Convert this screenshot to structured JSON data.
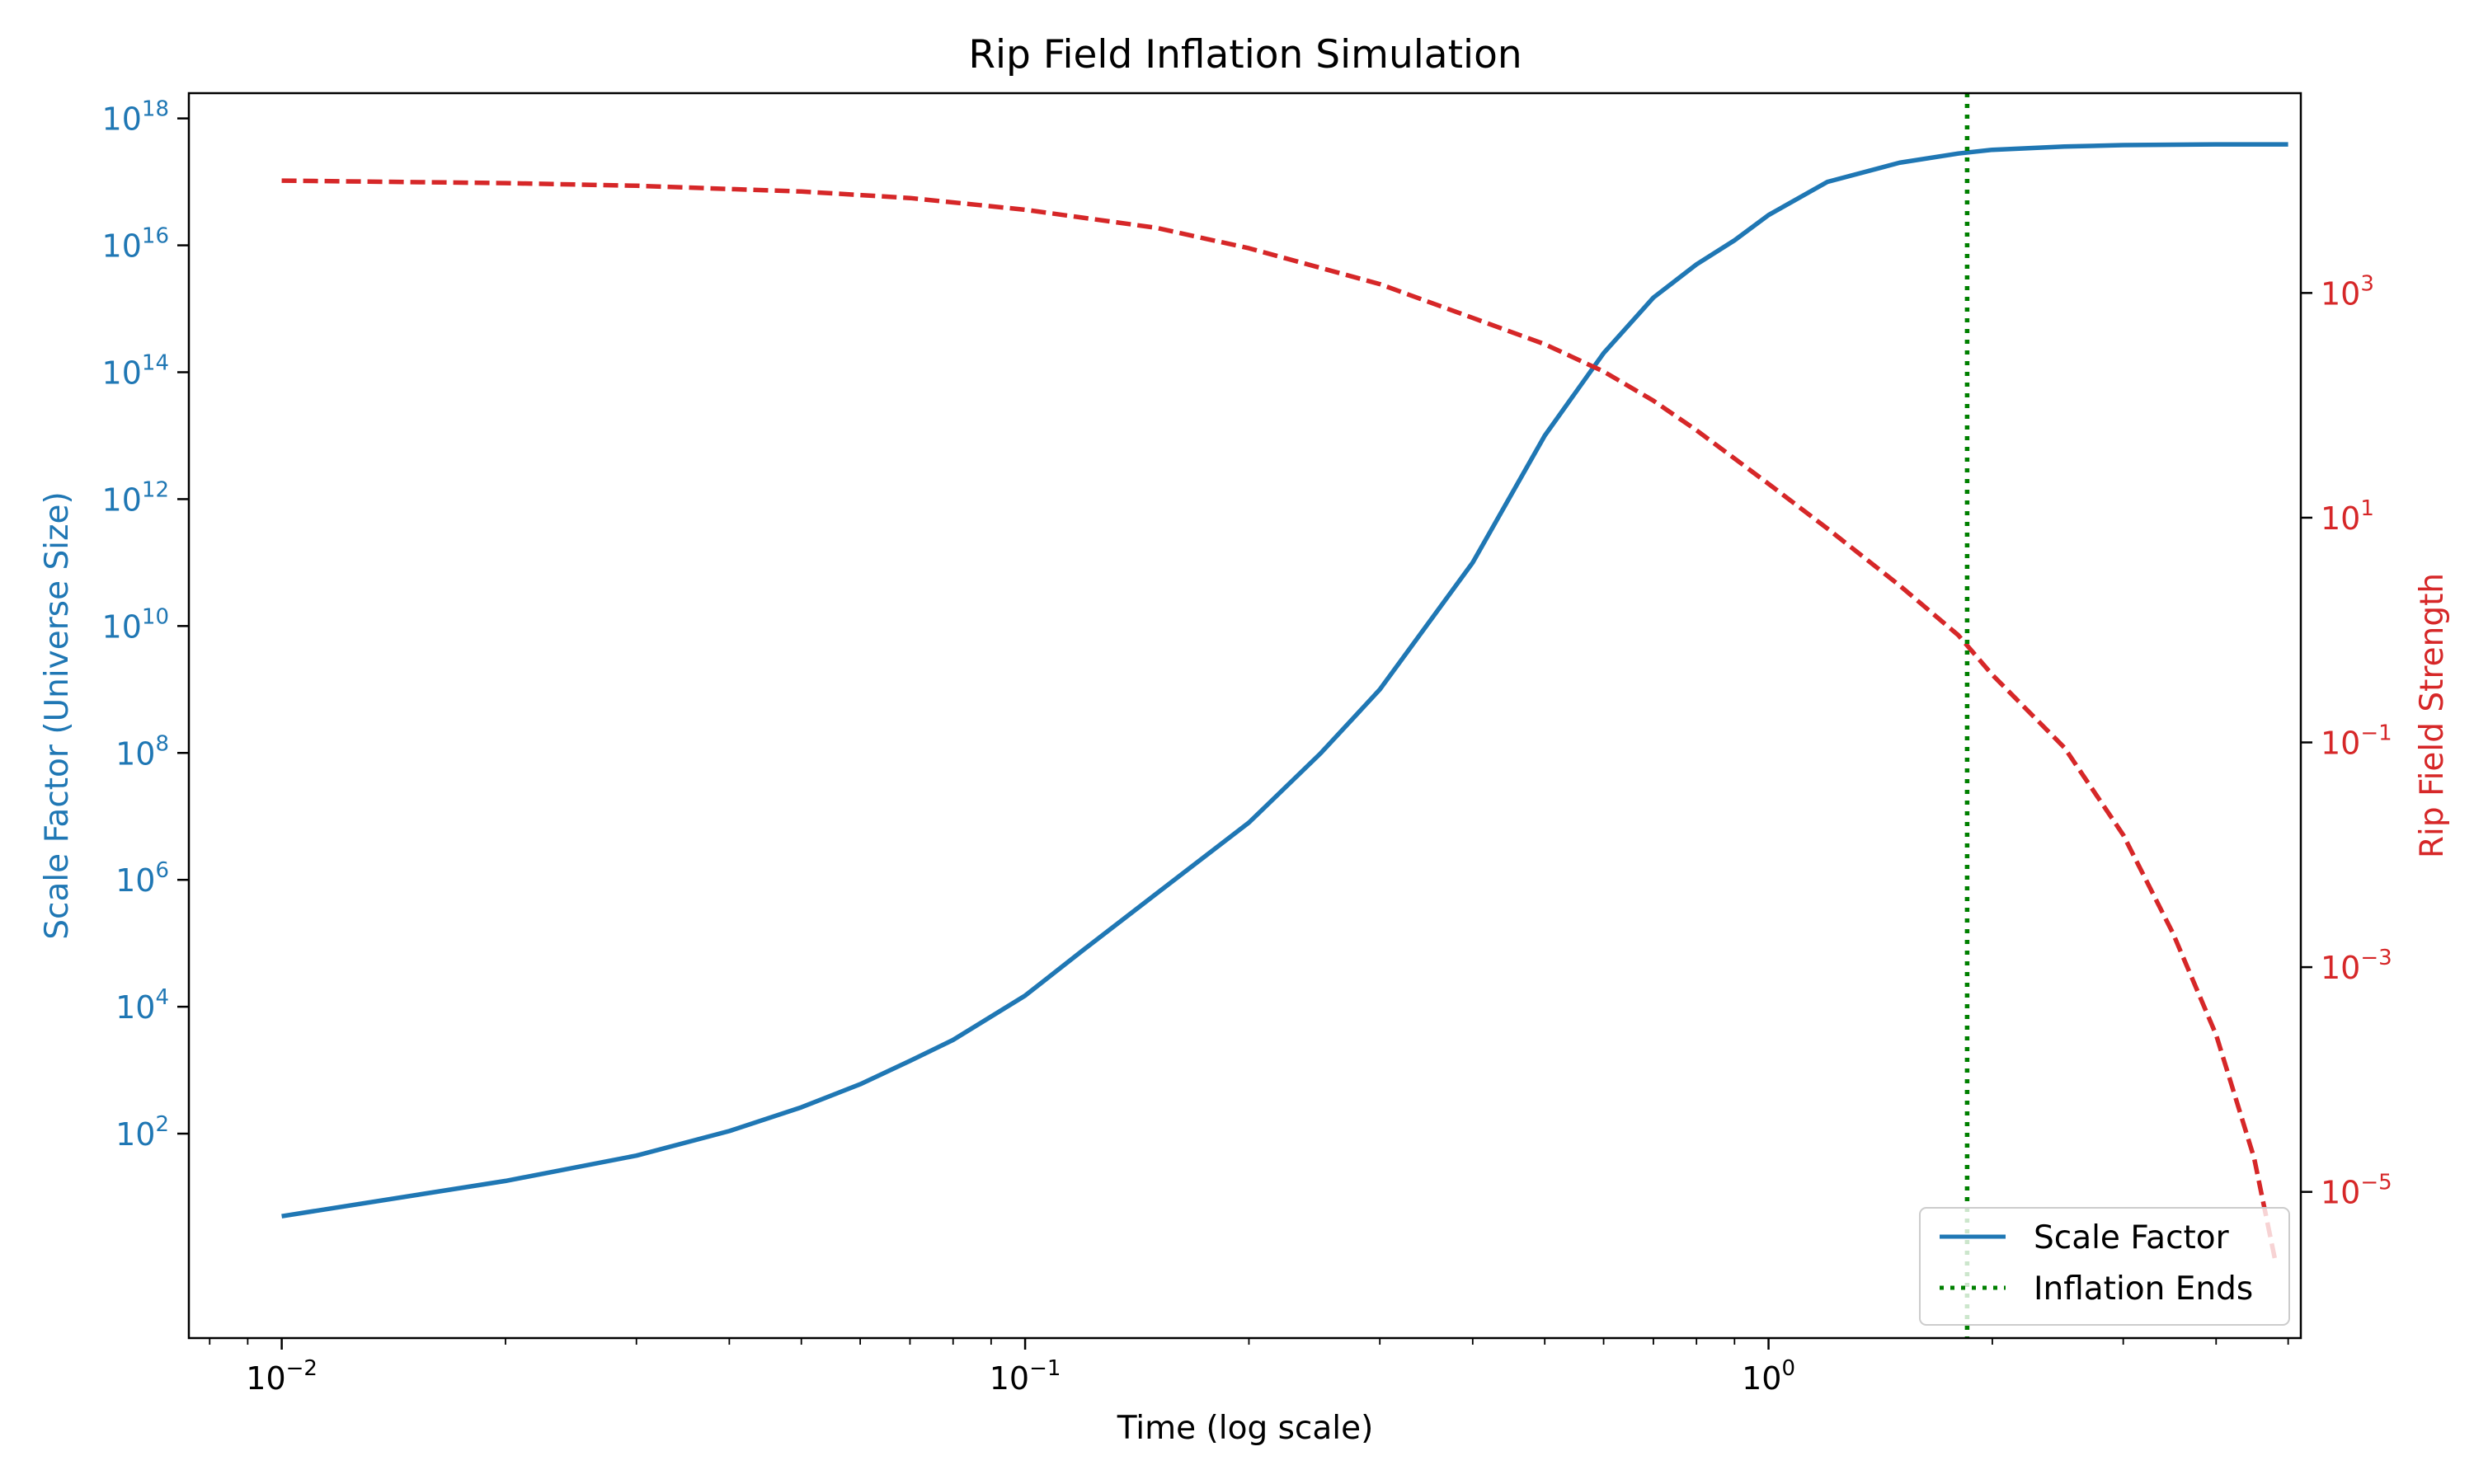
{
  "chart_data": {
    "type": "line",
    "title": "Rip Field Inflation Simulation",
    "xlabel": "Time (log scale)",
    "ylabel_left": "Scale Factor (Universe Size)",
    "ylabel_right": "Rip Field Strength",
    "x_scale": "log",
    "y_left_scale": "log",
    "y_right_scale": "log",
    "xlim": [
      0.0075,
      5.2
    ],
    "ylim_left": [
      0.06,
      2.5e+18
    ],
    "ylim_right": [
      5e-07,
      60000
    ],
    "x_ticks": [
      {
        "base": "10",
        "exp": "−2",
        "value": 0.01
      },
      {
        "base": "10",
        "exp": "−1",
        "value": 0.1
      },
      {
        "base": "10",
        "exp": "0",
        "value": 1
      }
    ],
    "y_left_ticks": [
      {
        "base": "10",
        "exp": "2",
        "value": 100
      },
      {
        "base": "10",
        "exp": "4",
        "value": 10000
      },
      {
        "base": "10",
        "exp": "6",
        "value": 1000000
      },
      {
        "base": "10",
        "exp": "8",
        "value": 100000000
      },
      {
        "base": "10",
        "exp": "10",
        "value": 10000000000.0
      },
      {
        "base": "10",
        "exp": "12",
        "value": 1000000000000.0
      },
      {
        "base": "10",
        "exp": "14",
        "value": 100000000000000.0
      },
      {
        "base": "10",
        "exp": "16",
        "value": 1e+16
      },
      {
        "base": "10",
        "exp": "18",
        "value": 1e+18
      }
    ],
    "y_right_ticks": [
      {
        "base": "10",
        "exp": "−5",
        "value": 1e-05
      },
      {
        "base": "10",
        "exp": "−3",
        "value": 0.001
      },
      {
        "base": "10",
        "exp": "−1",
        "value": 0.1
      },
      {
        "base": "10",
        "exp": "1",
        "value": 10
      },
      {
        "base": "10",
        "exp": "3",
        "value": 1000
      }
    ],
    "grid": false,
    "legend_position": "bottom-right",
    "colors": {
      "scale_factor": "#1f77b4",
      "rip_field": "#d62728",
      "inflation_line": "#008000",
      "axes": "#000000"
    },
    "series": [
      {
        "name": "Scale Factor",
        "axis": "left",
        "style": "solid",
        "x": [
          0.01,
          0.02,
          0.03,
          0.04,
          0.05,
          0.06,
          0.07,
          0.08,
          0.1,
          0.12,
          0.15,
          0.2,
          0.25,
          0.3,
          0.4,
          0.5,
          0.6,
          0.7,
          0.8,
          0.9,
          1.0,
          1.2,
          1.5,
          1.8,
          2.0,
          2.5,
          3.0,
          4.0,
          5.0
        ],
        "values": [
          5,
          18,
          45,
          110,
          260,
          600,
          1400,
          3000,
          15000,
          80000,
          600000,
          8000000,
          100000000,
          1000000000.0,
          100000000000.0,
          10000000000000.0,
          200000000000000.0,
          1500000000000000.0,
          5000000000000000.0,
          1.2e+16,
          3e+16,
          1e+17,
          2e+17,
          2.8e+17,
          3.2e+17,
          3.6e+17,
          3.8e+17,
          3.9e+17,
          3.9e+17
        ]
      },
      {
        "name": "",
        "axis": "right",
        "style": "dashed",
        "x": [
          0.01,
          0.02,
          0.03,
          0.05,
          0.07,
          0.1,
          0.15,
          0.2,
          0.3,
          0.4,
          0.5,
          0.6,
          0.7,
          0.8,
          1.0,
          1.2,
          1.5,
          1.8,
          2.0,
          2.5,
          3.0,
          3.5,
          4.0,
          4.5,
          4.8
        ],
        "values": [
          10000,
          9500,
          9000,
          8000,
          7000,
          5500,
          3800,
          2500,
          1200,
          600,
          350,
          200,
          110,
          60,
          20,
          8,
          2.5,
          0.9,
          0.4,
          0.09,
          0.015,
          0.002,
          0.00025,
          2e-05,
          2.5e-06
        ]
      }
    ],
    "vertical_lines": [
      {
        "name": "Inflation Ends",
        "x": 1.85,
        "style": "dotted"
      }
    ]
  }
}
